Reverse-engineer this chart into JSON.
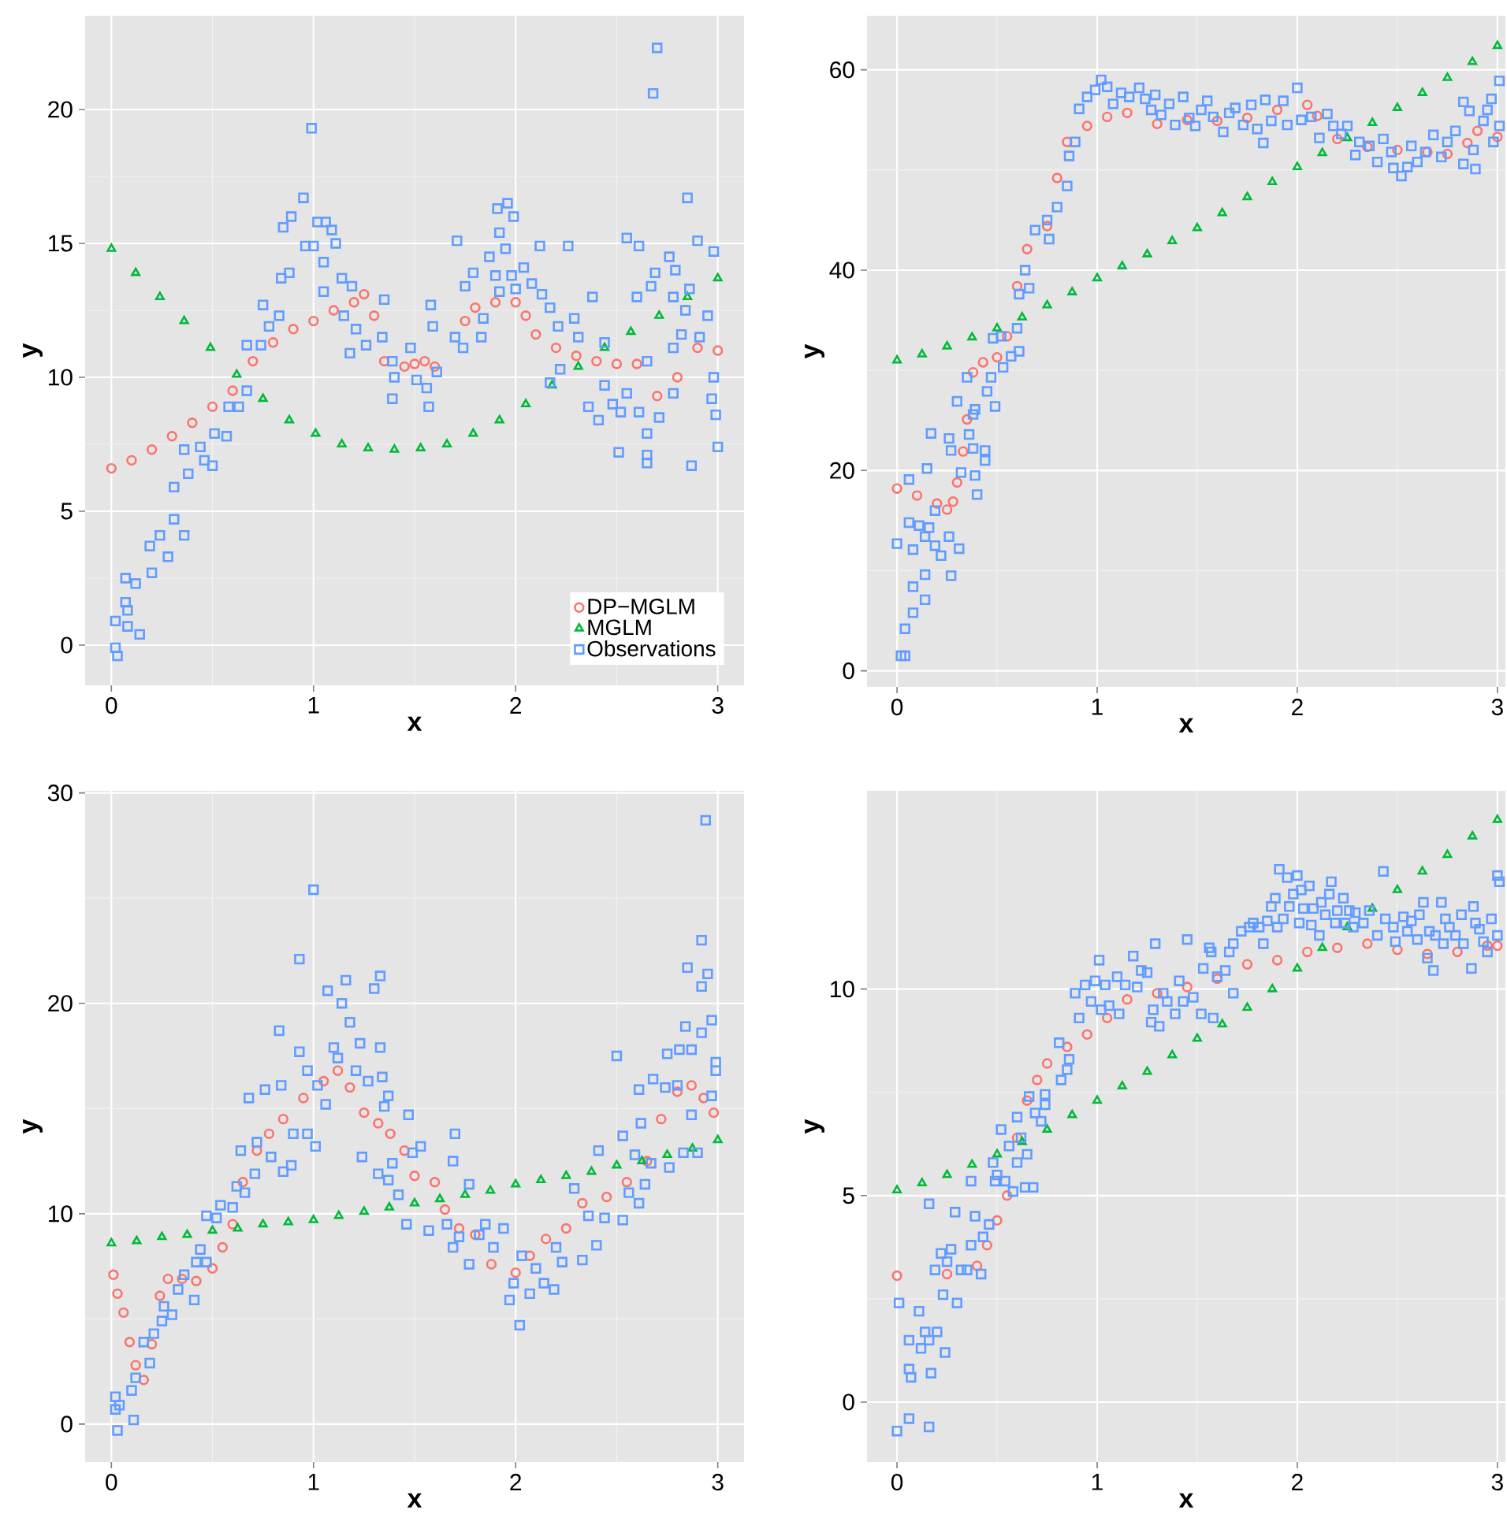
{
  "chart_data": [
    {
      "type": "scatter",
      "xlabel": "x",
      "ylabel": "y",
      "xlim": [
        -0.13,
        3.13
      ],
      "ylim": [
        -1.5,
        23.5
      ],
      "xticks": [
        0,
        1,
        2,
        3
      ],
      "yticks": [
        0,
        5,
        10,
        15,
        20
      ],
      "grid": true,
      "legend": "bottom right",
      "series": [
        {
          "name": "DP−MGLM",
          "color": "#f8766d",
          "marker": "circle",
          "x": [
            0,
            0.1,
            0.2,
            0.3,
            0.4,
            0.5,
            0.6,
            0.7,
            0.8,
            0.9,
            1.0,
            1.1,
            1.2,
            1.25,
            1.3,
            1.35,
            1.45,
            1.5,
            1.55,
            1.6,
            1.75,
            1.8,
            1.9,
            2.0,
            2.05,
            2.1,
            2.2,
            2.3,
            2.4,
            2.5,
            2.6,
            2.7,
            2.8,
            2.9,
            3.0
          ],
          "values": [
            6.6,
            6.9,
            7.3,
            7.8,
            8.3,
            8.9,
            9.5,
            10.6,
            11.3,
            11.8,
            12.1,
            12.5,
            12.8,
            13.1,
            12.3,
            10.6,
            10.4,
            10.5,
            10.6,
            10.4,
            12.1,
            12.6,
            12.8,
            12.8,
            12.3,
            11.6,
            11.1,
            10.8,
            10.6,
            10.5,
            10.5,
            9.3,
            10.0,
            11.1,
            11.0
          ]
        },
        {
          "name": "MGLM",
          "color": "#00ba38",
          "marker": "triangle",
          "x": [
            0,
            0.12,
            0.24,
            0.36,
            0.49,
            0.62,
            0.75,
            0.88,
            1.01,
            1.14,
            1.27,
            1.4,
            1.53,
            1.66,
            1.79,
            1.92,
            2.05,
            2.18,
            2.31,
            2.44,
            2.57,
            2.71,
            2.85,
            3.0
          ],
          "values": [
            14.8,
            13.9,
            13.0,
            12.1,
            11.1,
            10.1,
            9.2,
            8.4,
            7.9,
            7.5,
            7.35,
            7.3,
            7.35,
            7.5,
            7.9,
            8.4,
            9.0,
            9.7,
            10.4,
            11.1,
            11.7,
            12.3,
            13.0,
            13.7
          ]
        },
        {
          "name": "Observations",
          "color": "#619cff",
          "marker": "square",
          "x": [
            0.02,
            0.02,
            0.03,
            0.07,
            0.08,
            0.08,
            0.07,
            0.12,
            0.14,
            0.19,
            0.2,
            0.24,
            0.28,
            0.31,
            0.31,
            0.36,
            0.38,
            0.36,
            0.44,
            0.46,
            0.5,
            0.51,
            0.57,
            0.58,
            0.63,
            0.67,
            0.67,
            0.74,
            0.75,
            0.78,
            0.83,
            0.84,
            0.88,
            0.85,
            0.89,
            0.95,
            0.96,
            1.0,
            0.99,
            1.02,
            1.06,
            1.09,
            1.11,
            1.05,
            1.05,
            1.14,
            1.19,
            1.15,
            1.21,
            1.18,
            1.26,
            1.35,
            1.34,
            1.39,
            1.4,
            1.39,
            1.48,
            1.51,
            1.56,
            1.57,
            1.58,
            1.59,
            1.61,
            1.71,
            1.7,
            1.74,
            1.75,
            1.79,
            1.83,
            1.84,
            1.87,
            1.9,
            1.92,
            1.92,
            1.91,
            1.96,
            1.99,
            1.95,
            1.98,
            2.04,
            2.0,
            2.08,
            2.12,
            2.13,
            2.17,
            2.21,
            2.22,
            2.26,
            2.29,
            2.17,
            2.31,
            2.36,
            2.41,
            2.38,
            2.44,
            2.44,
            2.48,
            2.51,
            2.52,
            2.55,
            2.55,
            2.6,
            2.61,
            2.61,
            2.65,
            2.65,
            2.65,
            2.65,
            2.67,
            2.68,
            2.7,
            2.69,
            2.71,
            2.76,
            2.78,
            2.79,
            2.78,
            2.78,
            2.82,
            2.84,
            2.85,
            2.87,
            2.86,
            2.9,
            2.91,
            2.95,
            2.97,
            2.98,
            2.98,
            2.99,
            3.0
          ],
          "values": [
            0.9,
            -0.1,
            -0.4,
            1.6,
            1.3,
            0.7,
            2.5,
            2.3,
            0.4,
            3.7,
            2.7,
            4.1,
            3.3,
            4.7,
            5.9,
            4.1,
            6.4,
            7.3,
            7.4,
            6.9,
            6.7,
            7.9,
            7.8,
            8.9,
            8.9,
            9.5,
            11.2,
            11.2,
            12.7,
            11.9,
            12.3,
            13.7,
            13.9,
            15.6,
            16.0,
            16.7,
            14.9,
            14.9,
            19.3,
            15.8,
            15.8,
            15.5,
            15.0,
            14.3,
            13.2,
            13.7,
            13.4,
            12.3,
            11.8,
            10.9,
            11.2,
            12.9,
            11.5,
            10.6,
            10.0,
            9.2,
            11.1,
            9.9,
            9.6,
            8.9,
            12.7,
            11.9,
            10.2,
            15.1,
            11.5,
            11.1,
            13.4,
            13.9,
            11.5,
            12.2,
            14.5,
            13.8,
            13.2,
            15.4,
            16.3,
            16.5,
            16.0,
            14.8,
            13.8,
            14.1,
            13.3,
            13.5,
            14.9,
            13.1,
            12.6,
            11.9,
            10.3,
            14.9,
            12.2,
            9.8,
            11.5,
            8.9,
            8.4,
            13.0,
            9.7,
            11.3,
            9.0,
            7.2,
            8.7,
            15.2,
            9.4,
            13.0,
            14.9,
            8.7,
            10.6,
            7.9,
            6.8,
            7.1,
            13.4,
            20.6,
            22.3,
            13.9,
            8.5,
            14.5,
            9.4,
            14.0,
            11.1,
            13.0,
            11.6,
            12.5,
            16.7,
            6.7,
            13.3,
            15.1,
            11.5,
            12.3,
            9.2,
            14.7,
            10.0,
            8.6,
            7.4
          ]
        }
      ]
    },
    {
      "type": "scatter",
      "xlabel": "x",
      "ylabel": "y",
      "xlim": [
        -0.15,
        3.04
      ],
      "ylim": [
        -1.6,
        65.4
      ],
      "xticks": [
        0,
        1,
        2,
        3
      ],
      "yticks": [
        0,
        20,
        40,
        60
      ],
      "grid": true,
      "series": [
        {
          "color": "#f8766d",
          "marker": "circle",
          "x": [
            0,
            0.1,
            0.2,
            0.25,
            0.28,
            0.3,
            0.33,
            0.35,
            0.38,
            0.43,
            0.5,
            0.55,
            0.6,
            0.65,
            0.75,
            0.8,
            0.85,
            0.95,
            1.05,
            1.15,
            1.3,
            1.45,
            1.6,
            1.75,
            1.9,
            2.05,
            2.1,
            2.2,
            2.35,
            2.5,
            2.65,
            2.75,
            2.85,
            2.9,
            3.0
          ],
          "values": [
            18.2,
            17.5,
            16.7,
            16.1,
            16.9,
            18.8,
            21.9,
            25.1,
            29.8,
            30.8,
            31.3,
            33.4,
            38.4,
            42.1,
            44.4,
            49.2,
            52.8,
            54.4,
            55.3,
            55.7,
            54.6,
            55.0,
            54.9,
            55.2,
            56.0,
            56.5,
            55.4,
            53.1,
            52.3,
            52.0,
            51.8,
            51.6,
            52.7,
            53.9,
            53.3
          ]
        },
        {
          "color": "#00ba38",
          "marker": "triangle",
          "x": [
            0,
            0.125,
            0.25,
            0.375,
            0.5,
            0.625,
            0.75,
            0.875,
            1.0,
            1.125,
            1.25,
            1.375,
            1.5,
            1.625,
            1.75,
            1.875,
            2.0,
            2.125,
            2.25,
            2.375,
            2.5,
            2.625,
            2.75,
            2.875,
            3.0
          ],
          "values": [
            31.0,
            31.6,
            32.4,
            33.3,
            34.2,
            35.3,
            36.5,
            37.8,
            39.2,
            40.4,
            41.6,
            42.9,
            44.2,
            45.7,
            47.3,
            48.8,
            50.3,
            51.7,
            53.2,
            54.7,
            56.2,
            57.7,
            59.2,
            60.8,
            62.4
          ]
        },
        {
          "color": "#619cff",
          "marker": "square",
          "x": [
            0.0,
            0.02,
            0.04,
            0.04,
            0.06,
            0.06,
            0.08,
            0.08,
            0.08,
            0.11,
            0.14,
            0.14,
            0.14,
            0.15,
            0.17,
            0.16,
            0.19,
            0.19,
            0.22,
            0.26,
            0.26,
            0.27,
            0.27,
            0.3,
            0.31,
            0.32,
            0.35,
            0.36,
            0.38,
            0.39,
            0.4,
            0.38,
            0.39,
            0.44,
            0.44,
            0.45,
            0.47,
            0.49,
            0.48,
            0.52,
            0.53,
            0.57,
            0.6,
            0.61,
            0.61,
            0.64,
            0.66,
            0.69,
            0.75,
            0.76,
            0.8,
            0.85,
            0.86,
            0.89,
            0.91,
            0.95,
            0.99,
            1.02,
            1.05,
            1.08,
            1.12,
            1.16,
            1.21,
            1.24,
            1.27,
            1.29,
            1.32,
            1.36,
            1.39,
            1.43,
            1.46,
            1.49,
            1.52,
            1.55,
            1.58,
            1.63,
            1.66,
            1.69,
            1.73,
            1.77,
            1.8,
            1.83,
            1.84,
            1.87,
            1.93,
            1.95,
            2.0,
            2.02,
            2.07,
            2.11,
            2.15,
            2.18,
            2.22,
            2.25,
            2.29,
            2.31,
            2.36,
            2.4,
            2.43,
            2.47,
            2.48,
            2.52,
            2.55,
            2.57,
            2.6,
            2.64,
            2.68,
            2.72,
            2.75,
            2.79,
            2.83,
            2.83,
            2.86,
            2.89,
            2.88,
            2.93,
            2.95,
            2.97,
            2.98,
            3.01,
            3.01
          ],
          "values": [
            12.7,
            1.5,
            1.5,
            4.2,
            19.1,
            14.8,
            5.8,
            8.4,
            12.1,
            14.5,
            9.6,
            7.1,
            13.4,
            20.2,
            23.7,
            14.3,
            12.5,
            16.0,
            11.5,
            13.4,
            23.2,
            9.5,
            22.0,
            26.9,
            12.2,
            19.8,
            29.3,
            23.6,
            22.2,
            19.5,
            17.6,
            25.6,
            26.1,
            22.0,
            21.0,
            27.9,
            29.3,
            26.4,
            33.2,
            33.4,
            30.3,
            31.4,
            34.2,
            31.9,
            37.6,
            40.0,
            38.2,
            44.0,
            45.0,
            43.1,
            46.3,
            48.4,
            51.4,
            52.8,
            56.1,
            57.3,
            58.0,
            59.0,
            58.3,
            56.6,
            57.7,
            57.3,
            58.2,
            57.1,
            56.0,
            57.5,
            55.5,
            56.6,
            54.5,
            57.3,
            55.2,
            54.4,
            56.0,
            56.9,
            55.3,
            53.8,
            55.7,
            56.2,
            54.5,
            56.5,
            54.1,
            52.7,
            57.0,
            54.9,
            56.9,
            54.5,
            58.2,
            55.0,
            55.3,
            53.2,
            55.6,
            54.4,
            53.6,
            54.4,
            51.5,
            52.8,
            52.4,
            50.8,
            53.1,
            51.8,
            50.2,
            49.4,
            50.3,
            52.4,
            50.8,
            51.8,
            53.5,
            51.3,
            52.8,
            53.9,
            56.8,
            50.6,
            55.9,
            50.1,
            52.0,
            54.9,
            56.0,
            57.1,
            52.8,
            58.9,
            54.4
          ]
        }
      ]
    },
    {
      "type": "scatter",
      "xlabel": "x",
      "ylabel": "y",
      "xlim": [
        -0.13,
        3.13
      ],
      "ylim": [
        -1.8,
        30.1
      ],
      "xticks": [
        0,
        1,
        2,
        3
      ],
      "yticks": [
        0,
        10,
        20,
        30
      ],
      "grid": true,
      "series": [
        {
          "color": "#f8766d",
          "marker": "circle",
          "x": [
            0.01,
            0.03,
            0.06,
            0.09,
            0.12,
            0.16,
            0.2,
            0.24,
            0.28,
            0.35,
            0.42,
            0.5,
            0.55,
            0.6,
            0.65,
            0.72,
            0.78,
            0.85,
            0.95,
            1.05,
            1.12,
            1.18,
            1.25,
            1.32,
            1.38,
            1.45,
            1.5,
            1.6,
            1.65,
            1.72,
            1.8,
            1.88,
            2.0,
            2.07,
            2.15,
            2.25,
            2.33,
            2.45,
            2.55,
            2.65,
            2.72,
            2.8,
            2.87,
            2.93,
            2.98
          ],
          "values": [
            7.1,
            6.2,
            5.3,
            3.9,
            2.8,
            2.1,
            3.8,
            6.1,
            6.9,
            6.9,
            6.8,
            7.4,
            8.4,
            9.5,
            11.5,
            13.0,
            13.8,
            14.5,
            15.5,
            16.3,
            16.8,
            16.0,
            14.8,
            14.3,
            13.8,
            13.0,
            11.8,
            11.5,
            10.2,
            9.3,
            9.0,
            7.6,
            7.2,
            8.0,
            8.8,
            9.3,
            10.5,
            10.8,
            11.5,
            12.5,
            14.5,
            15.8,
            16.1,
            15.5,
            14.8
          ]
        },
        {
          "color": "#00ba38",
          "marker": "triangle",
          "x": [
            0,
            0.125,
            0.25,
            0.375,
            0.5,
            0.625,
            0.75,
            0.875,
            1.0,
            1.125,
            1.25,
            1.375,
            1.5,
            1.625,
            1.75,
            1.875,
            2.0,
            2.125,
            2.25,
            2.375,
            2.5,
            2.625,
            2.75,
            2.875,
            3.0
          ],
          "values": [
            8.6,
            8.7,
            8.9,
            9.0,
            9.2,
            9.3,
            9.5,
            9.6,
            9.7,
            9.9,
            10.1,
            10.3,
            10.5,
            10.7,
            10.9,
            11.1,
            11.4,
            11.6,
            11.8,
            12.0,
            12.3,
            12.5,
            12.8,
            13.1,
            13.5
          ]
        },
        {
          "color": "#619cff",
          "marker": "square",
          "x": [
            0.02,
            0.03,
            0.02,
            0.04,
            0.1,
            0.11,
            0.12,
            0.16,
            0.19,
            0.21,
            0.25,
            0.26,
            0.3,
            0.33,
            0.36,
            0.41,
            0.42,
            0.44,
            0.47,
            0.47,
            0.52,
            0.54,
            0.6,
            0.62,
            0.64,
            0.66,
            0.68,
            0.71,
            0.72,
            0.76,
            0.79,
            0.83,
            0.84,
            0.85,
            0.89,
            0.9,
            0.93,
            0.93,
            0.97,
            0.97,
            1.0,
            1.01,
            1.02,
            1.06,
            1.07,
            1.1,
            1.12,
            1.14,
            1.16,
            1.18,
            1.21,
            1.23,
            1.24,
            1.27,
            1.3,
            1.33,
            1.33,
            1.34,
            1.35,
            1.32,
            1.37,
            1.39,
            1.37,
            1.42,
            1.46,
            1.47,
            1.49,
            1.53,
            1.57,
            1.66,
            1.69,
            1.7,
            1.69,
            1.72,
            1.77,
            1.77,
            1.82,
            1.85,
            1.89,
            1.94,
            1.97,
            1.99,
            2.02,
            2.03,
            2.07,
            2.1,
            2.14,
            2.19,
            2.2,
            2.23,
            2.29,
            2.33,
            2.36,
            2.4,
            2.41,
            2.44,
            2.5,
            2.53,
            2.53,
            2.56,
            2.59,
            2.61,
            2.61,
            2.62,
            2.64,
            2.67,
            2.68,
            2.74,
            2.75,
            2.76,
            2.8,
            2.81,
            2.83,
            2.84,
            2.85,
            2.87,
            2.87,
            2.9,
            2.92,
            2.92,
            2.92,
            2.95,
            2.94,
            2.97,
            2.97,
            2.99,
            2.99
          ],
          "values": [
            0.7,
            -0.3,
            1.3,
            0.9,
            1.6,
            0.2,
            2.2,
            3.9,
            2.9,
            4.3,
            4.9,
            5.6,
            5.2,
            6.4,
            7.1,
            5.9,
            7.7,
            8.3,
            7.7,
            9.9,
            9.8,
            10.4,
            10.3,
            11.3,
            13.0,
            11.0,
            15.5,
            11.9,
            13.4,
            15.9,
            12.7,
            18.7,
            16.1,
            12.0,
            12.3,
            13.8,
            22.1,
            17.7,
            16.8,
            13.8,
            25.4,
            13.2,
            16.1,
            15.2,
            20.6,
            17.9,
            17.4,
            20.0,
            21.1,
            19.1,
            16.8,
            18.1,
            12.7,
            16.3,
            20.7,
            21.3,
            17.9,
            16.5,
            15.1,
            11.9,
            15.6,
            12.4,
            11.6,
            10.9,
            9.5,
            14.7,
            12.9,
            13.2,
            9.2,
            9.5,
            12.5,
            13.8,
            8.4,
            8.9,
            7.6,
            11.4,
            9.0,
            9.5,
            8.4,
            9.3,
            5.9,
            6.7,
            4.7,
            8.0,
            6.2,
            7.4,
            6.7,
            6.4,
            8.4,
            7.7,
            11.2,
            7.8,
            9.9,
            8.5,
            13.0,
            9.8,
            17.5,
            9.7,
            13.7,
            11.0,
            12.8,
            10.5,
            15.9,
            14.3,
            11.4,
            12.4,
            16.4,
            16.0,
            17.6,
            12.2,
            16.1,
            17.8,
            12.9,
            18.9,
            21.7,
            17.8,
            14.7,
            12.9,
            18.6,
            20.8,
            23.0,
            21.4,
            28.7,
            19.2,
            15.6,
            16.8,
            17.2
          ]
        }
      ]
    },
    {
      "type": "scatter",
      "xlabel": "x",
      "ylabel": "y",
      "xlim": [
        -0.15,
        3.04
      ],
      "ylim": [
        -1.45,
        14.8
      ],
      "xticks": [
        0,
        1,
        2,
        3
      ],
      "yticks": [
        0,
        5,
        10
      ],
      "grid": true,
      "series": [
        {
          "color": "#f8766d",
          "marker": "circle",
          "x": [
            0,
            0.25,
            0.4,
            0.45,
            0.5,
            0.55,
            0.6,
            0.65,
            0.7,
            0.75,
            0.85,
            0.95,
            1.05,
            1.15,
            1.3,
            1.45,
            1.6,
            1.75,
            1.9,
            2.05,
            2.2,
            2.35,
            2.5,
            2.65,
            2.8,
            2.95,
            3.0
          ],
          "values": [
            3.06,
            3.1,
            3.3,
            3.8,
            4.4,
            5.0,
            6.4,
            7.3,
            7.8,
            8.2,
            8.6,
            8.9,
            9.3,
            9.75,
            9.9,
            10.05,
            10.25,
            10.6,
            10.7,
            10.9,
            11.0,
            11.1,
            10.95,
            10.85,
            10.9,
            11.05,
            11.05
          ]
        },
        {
          "color": "#00ba38",
          "marker": "triangle",
          "x": [
            0,
            0.125,
            0.25,
            0.375,
            0.5,
            0.625,
            0.75,
            0.875,
            1.0,
            1.125,
            1.25,
            1.375,
            1.5,
            1.625,
            1.75,
            1.875,
            2.0,
            2.125,
            2.25,
            2.375,
            2.5,
            2.625,
            2.75,
            2.875,
            3.0
          ],
          "values": [
            5.13,
            5.3,
            5.5,
            5.75,
            6.0,
            6.3,
            6.6,
            6.95,
            7.3,
            7.65,
            8.0,
            8.4,
            8.8,
            9.15,
            9.55,
            10.0,
            10.5,
            11.0,
            11.5,
            11.95,
            12.4,
            12.85,
            13.25,
            13.7,
            14.1
          ]
        },
        {
          "color": "#619cff",
          "marker": "square",
          "x": [
            0.0,
            0.01,
            0.06,
            0.06,
            0.06,
            0.07,
            0.11,
            0.12,
            0.14,
            0.16,
            0.16,
            0.17,
            0.16,
            0.19,
            0.2,
            0.22,
            0.23,
            0.24,
            0.25,
            0.27,
            0.29,
            0.3,
            0.32,
            0.35,
            0.37,
            0.37,
            0.39,
            0.42,
            0.43,
            0.46,
            0.48,
            0.49,
            0.5,
            0.52,
            0.54,
            0.56,
            0.58,
            0.6,
            0.6,
            0.62,
            0.64,
            0.65,
            0.66,
            0.68,
            0.69,
            0.72,
            0.74,
            0.74,
            0.81,
            0.82,
            0.85,
            0.86,
            0.89,
            0.91,
            0.94,
            0.97,
            0.99,
            1.01,
            1.02,
            1.04,
            1.06,
            1.1,
            1.11,
            1.14,
            1.18,
            1.2,
            1.22,
            1.25,
            1.27,
            1.28,
            1.31,
            1.29,
            1.33,
            1.35,
            1.39,
            1.41,
            1.43,
            1.45,
            1.48,
            1.52,
            1.53,
            1.56,
            1.57,
            1.58,
            1.6,
            1.64,
            1.66,
            1.68,
            1.68,
            1.72,
            1.76,
            1.78,
            1.81,
            1.83,
            1.85,
            1.87,
            1.89,
            1.9,
            1.91,
            1.93,
            1.95,
            1.96,
            1.98,
            2.0,
            2.01,
            2.02,
            2.03,
            2.06,
            2.07,
            2.08,
            2.11,
            2.12,
            2.14,
            2.16,
            2.17,
            2.19,
            2.2,
            2.23,
            2.24,
            2.26,
            2.28,
            2.29,
            2.33,
            2.36,
            2.4,
            2.43,
            2.44,
            2.48,
            2.49,
            2.53,
            2.55,
            2.57,
            2.6,
            2.61,
            2.63,
            2.65,
            2.66,
            2.68,
            2.69,
            2.72,
            2.73,
            2.74,
            2.76,
            2.79,
            2.82,
            2.83,
            2.87,
            2.88,
            2.89,
            2.91,
            2.93,
            2.95,
            2.97,
            3.0,
            3.0,
            3.01
          ],
          "values": [
            -0.7,
            2.4,
            -0.4,
            1.5,
            0.8,
            0.6,
            2.2,
            1.3,
            1.7,
            -0.6,
            1.5,
            0.7,
            4.8,
            3.2,
            1.7,
            3.6,
            2.6,
            1.2,
            3.4,
            3.7,
            4.6,
            2.4,
            3.2,
            3.2,
            5.35,
            3.8,
            4.5,
            3.1,
            4.0,
            4.3,
            5.8,
            5.35,
            5.5,
            6.6,
            5.35,
            6.2,
            5.1,
            6.9,
            5.8,
            6.4,
            5.2,
            6.0,
            7.4,
            5.2,
            7.0,
            6.8,
            7.2,
            7.45,
            8.7,
            7.8,
            8.05,
            8.3,
            9.9,
            9.3,
            10.1,
            9.7,
            10.2,
            10.7,
            9.5,
            10.1,
            9.6,
            10.3,
            9.4,
            10.1,
            10.8,
            10.05,
            10.45,
            10.4,
            9.2,
            9.5,
            9.1,
            11.1,
            9.9,
            9.7,
            9.4,
            10.2,
            9.7,
            11.2,
            9.8,
            9.4,
            10.5,
            11.0,
            10.9,
            9.3,
            10.3,
            10.45,
            10.9,
            9.9,
            11.1,
            11.4,
            11.5,
            11.6,
            11.5,
            11.1,
            11.65,
            12.0,
            12.2,
            11.5,
            12.9,
            11.7,
            12.7,
            12.0,
            12.3,
            12.75,
            11.6,
            12.4,
            11.95,
            12.5,
            11.55,
            11.95,
            11.3,
            12.1,
            11.8,
            12.3,
            12.6,
            11.6,
            11.9,
            12.2,
            11.6,
            11.9,
            11.5,
            11.85,
            11.6,
            11.9,
            11.3,
            12.85,
            11.7,
            11.5,
            11.15,
            11.75,
            11.4,
            11.65,
            11.2,
            11.8,
            12.1,
            10.75,
            11.4,
            10.45,
            11.3,
            12.1,
            11.1,
            11.7,
            11.5,
            11.3,
            11.8,
            11.1,
            10.5,
            12.0,
            11.6,
            11.45,
            11.15,
            10.9,
            11.7,
            12.75,
            11.3,
            12.6
          ]
        }
      ]
    }
  ]
}
